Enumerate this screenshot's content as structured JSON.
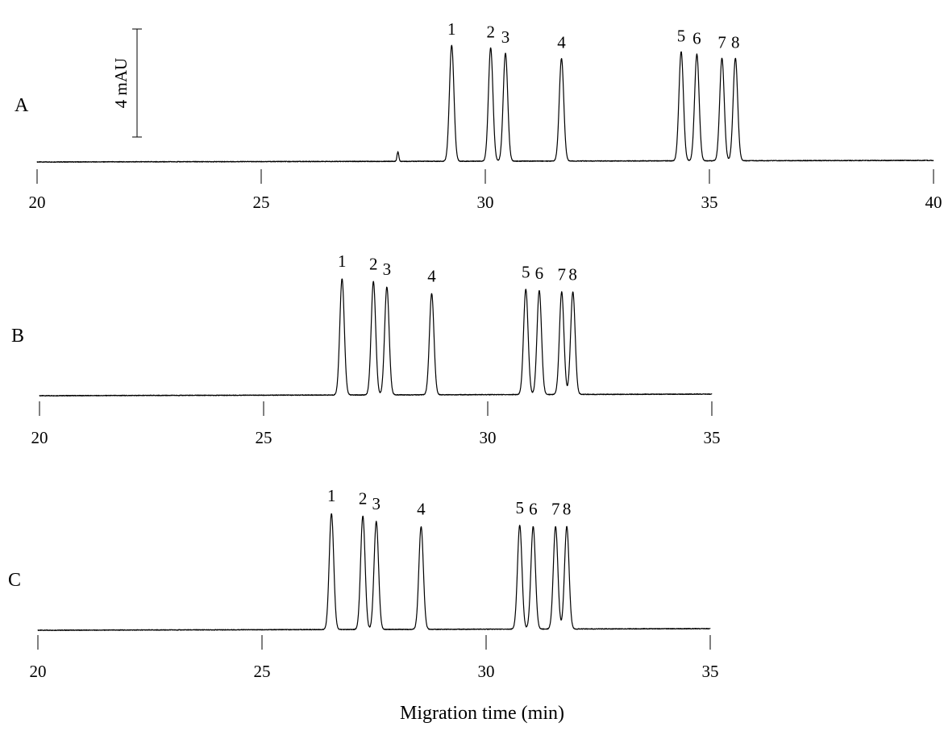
{
  "chart_data": [
    {
      "type": "line",
      "panel_label": "A",
      "x_ticks": [
        20,
        25,
        30,
        35,
        40
      ],
      "xlim": [
        20,
        40
      ],
      "baseline_mAU": 0,
      "peaks": [
        {
          "label": "",
          "time": 28.05,
          "height_mAU": 0.35,
          "width": 0.02
        },
        {
          "label": "1",
          "time": 29.25,
          "height_mAU": 4.3,
          "width": 0.05
        },
        {
          "label": "2",
          "time": 30.12,
          "height_mAU": 4.2,
          "width": 0.05
        },
        {
          "label": "3",
          "time": 30.45,
          "height_mAU": 4.0,
          "width": 0.05
        },
        {
          "label": "4",
          "time": 31.7,
          "height_mAU": 3.8,
          "width": 0.05
        },
        {
          "label": "5",
          "time": 34.37,
          "height_mAU": 4.05,
          "width": 0.05
        },
        {
          "label": "6",
          "time": 34.72,
          "height_mAU": 3.95,
          "width": 0.05
        },
        {
          "label": "7",
          "time": 35.28,
          "height_mAU": 3.8,
          "width": 0.05
        },
        {
          "label": "8",
          "time": 35.58,
          "height_mAU": 3.8,
          "width": 0.05
        }
      ],
      "scale_bar": {
        "label": "4 mAU",
        "value_mAU": 4
      }
    },
    {
      "type": "line",
      "panel_label": "B",
      "x_ticks": [
        20,
        25,
        30,
        35
      ],
      "xlim": [
        20,
        35
      ],
      "baseline_mAU": 0,
      "peaks": [
        {
          "label": "1",
          "time": 26.75,
          "height_mAU": 4.3,
          "width": 0.05
        },
        {
          "label": "2",
          "time": 27.45,
          "height_mAU": 4.2,
          "width": 0.05
        },
        {
          "label": "3",
          "time": 27.75,
          "height_mAU": 4.0,
          "width": 0.05
        },
        {
          "label": "4",
          "time": 28.75,
          "height_mAU": 3.75,
          "width": 0.05
        },
        {
          "label": "5",
          "time": 30.85,
          "height_mAU": 3.9,
          "width": 0.05
        },
        {
          "label": "6",
          "time": 31.15,
          "height_mAU": 3.85,
          "width": 0.05
        },
        {
          "label": "7",
          "time": 31.65,
          "height_mAU": 3.8,
          "width": 0.05
        },
        {
          "label": "8",
          "time": 31.9,
          "height_mAU": 3.8,
          "width": 0.05
        }
      ]
    },
    {
      "type": "line",
      "panel_label": "C",
      "x_ticks": [
        20,
        25,
        30,
        35
      ],
      "xlim": [
        20,
        35
      ],
      "baseline_mAU": 0,
      "peaks": [
        {
          "label": "1",
          "time": 26.55,
          "height_mAU": 4.3,
          "width": 0.05
        },
        {
          "label": "2",
          "time": 27.25,
          "height_mAU": 4.2,
          "width": 0.05
        },
        {
          "label": "3",
          "time": 27.55,
          "height_mAU": 4.0,
          "width": 0.05
        },
        {
          "label": "4",
          "time": 28.55,
          "height_mAU": 3.8,
          "width": 0.05
        },
        {
          "label": "5",
          "time": 30.75,
          "height_mAU": 3.85,
          "width": 0.05
        },
        {
          "label": "6",
          "time": 31.05,
          "height_mAU": 3.8,
          "width": 0.05
        },
        {
          "label": "7",
          "time": 31.55,
          "height_mAU": 3.8,
          "width": 0.05
        },
        {
          "label": "8",
          "time": 31.8,
          "height_mAU": 3.8,
          "width": 0.05
        }
      ]
    }
  ],
  "xlabel": "Migration time (min)"
}
